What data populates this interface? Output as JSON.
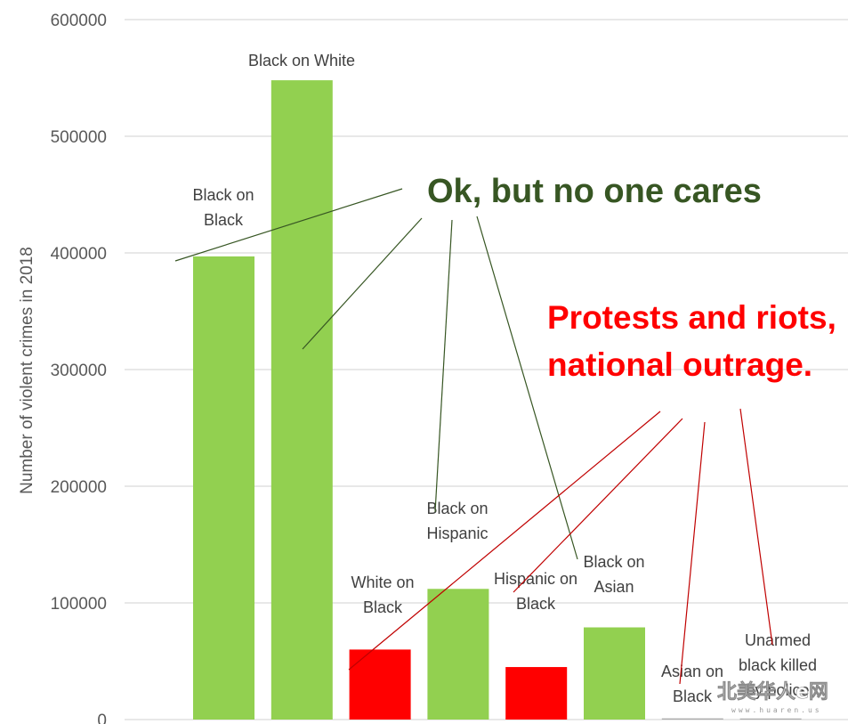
{
  "chart_data": {
    "type": "bar",
    "title": "",
    "xlabel": "",
    "ylabel": "Number of violent crimes in 2018",
    "ylim": [
      0,
      600000
    ],
    "yticks": [
      "0",
      "100000",
      "200000",
      "300000",
      "400000",
      "500000",
      "600000"
    ],
    "grid": true,
    "categories": [
      "Black on Black",
      "Black on White",
      "White on Black",
      "Black on Hispanic",
      "Hispanic on Black",
      "Black on Asian",
      "Asian on Black",
      "Unarmed black killed by police"
    ],
    "category_label_lines": [
      [
        "Black on",
        "Black"
      ],
      [
        "Black on White"
      ],
      [
        "White on",
        "Black"
      ],
      [
        "Black on",
        "Hispanic"
      ],
      [
        "Hispanic on",
        "Black"
      ],
      [
        "Black on",
        "Asian"
      ],
      [
        "Asian on",
        "Black"
      ],
      [
        "Unarmed",
        "black killed",
        "by police"
      ]
    ],
    "values": [
      397000,
      548000,
      60000,
      112000,
      45000,
      79000,
      1000,
      50
    ],
    "bar_colors": [
      "#92d050",
      "#92d050",
      "#ff0000",
      "#92d050",
      "#ff0000",
      "#92d050",
      "#a9a9a9",
      "#a9a9a9"
    ],
    "annotations": [
      {
        "text": "Ok, but no one cares",
        "color": "#375623"
      },
      {
        "text_lines": [
          "Protests and riots,",
          "national outrage."
        ],
        "color": "#ff0000"
      }
    ]
  },
  "watermark": {
    "text": "北美华人e网",
    "sub": "www.huaren.us"
  },
  "colors": {
    "gridline": "#d9d9d9",
    "green_line": "#375623",
    "red_line": "#c00000"
  }
}
